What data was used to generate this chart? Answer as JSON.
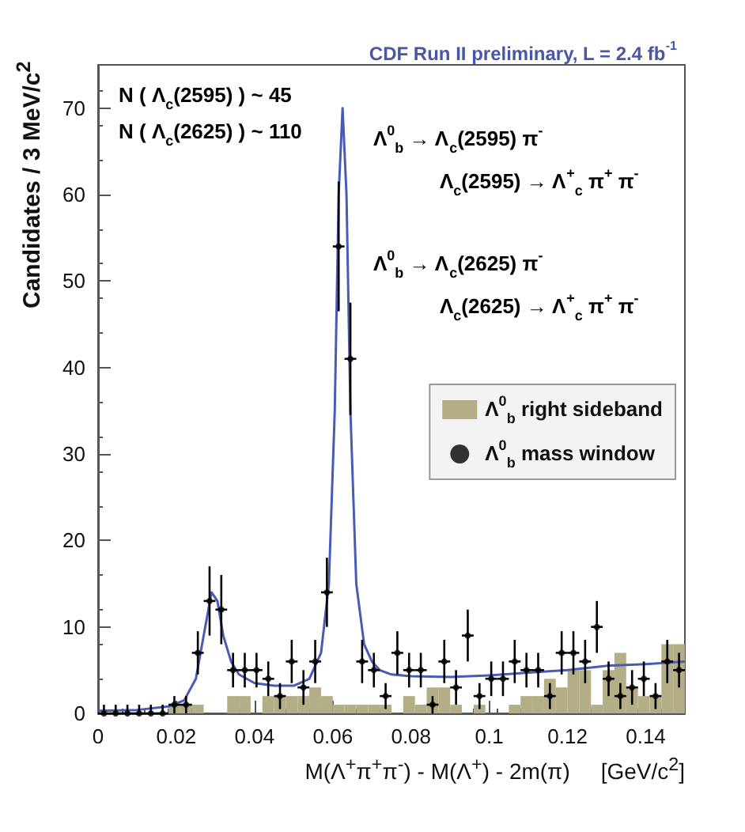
{
  "chart_data": {
    "type": "scatter",
    "title": "CDF Run II preliminary, L = 2.4 fb$^{-1}$",
    "xlabel": "M(Λ$^{+}$π$^{+}$π$^{-}$) - M(Λ$^{+}$) - 2m(π)     [GeV/c$^{2}$]",
    "ylabel": "Candidates / 3 MeV/c$^{2}$",
    "annotations": [
      "N ( Λ$_{c}$(2595) ) ~ 45",
      "N ( Λ$_{c}$(2625) ) ~ 110",
      "Λ$^{0}$$_{b}$ → Λ$_{c}$(2595) π$^{-}$",
      "Λ$_{c}$(2595) → Λ$^{+}$$_{c}$ π$^{+}$ π$^{-}$",
      "Λ$^{0}$$_{b}$ → Λ$_{c}$(2625) π$^{-}$",
      "Λ$_{c}$(2625) → Λ$^{+}$$_{c}$ π$^{+}$ π$^{-}$"
    ],
    "xlim": [
      0,
      0.15
    ],
    "xticks": [
      0,
      0.02,
      0.04,
      0.06,
      0.08,
      0.1,
      0.12,
      0.14
    ],
    "ylim": [
      0,
      75
    ],
    "yticks": [
      0,
      10,
      20,
      30,
      40,
      50,
      60,
      70
    ],
    "legend": "right",
    "series": [
      {
        "type": "bar",
        "name": "Λ$^{0}$$_{b}$ right sideband",
        "color": "#b3ae85",
        "x": [
          0.0015,
          0.0045,
          0.0075,
          0.0105,
          0.0135,
          0.0165,
          0.0195,
          0.0225,
          0.0255,
          0.0285,
          0.0315,
          0.0345,
          0.0375,
          0.0405,
          0.0435,
          0.0465,
          0.0495,
          0.0525,
          0.0555,
          0.0585,
          0.0615,
          0.0645,
          0.0675,
          0.0705,
          0.0735,
          0.0765,
          0.0795,
          0.0825,
          0.0855,
          0.0885,
          0.0915,
          0.0945,
          0.0975,
          0.1005,
          0.1035,
          0.1065,
          0.1095,
          0.1125,
          0.1155,
          0.1185,
          0.1215,
          0.1245,
          0.1275,
          0.1305,
          0.1335,
          0.1365,
          0.1395,
          0.1425,
          0.1455,
          0.1485
        ],
        "values": [
          0,
          0,
          0,
          0,
          0,
          0,
          1,
          1,
          1,
          0,
          0,
          2,
          2,
          0,
          2,
          2,
          2,
          2,
          3,
          2,
          1,
          1,
          1,
          1,
          1,
          0,
          2,
          1,
          3,
          3,
          1,
          0,
          1,
          0,
          0,
          1,
          2,
          2,
          4,
          3,
          5,
          5,
          1,
          5,
          7,
          3,
          2,
          2,
          8,
          8
        ]
      },
      {
        "type": "line",
        "color": "#4a5bb5",
        "x": [
          0,
          0.01,
          0.018,
          0.022,
          0.025,
          0.027,
          0.029,
          0.0305,
          0.032,
          0.034,
          0.036,
          0.04,
          0.045,
          0.05,
          0.054,
          0.057,
          0.059,
          0.0605,
          0.0615,
          0.0625,
          0.0635,
          0.0645,
          0.066,
          0.068,
          0.07,
          0.072,
          0.075,
          0.08,
          0.09,
          0.1,
          0.11,
          0.12,
          0.13,
          0.14,
          0.15
        ],
        "values": [
          0.3,
          0.4,
          0.8,
          1.5,
          4,
          9,
          14,
          13,
          9,
          6,
          4.5,
          3.5,
          3.2,
          3.2,
          4,
          7,
          15,
          35,
          60,
          70,
          60,
          35,
          15,
          8,
          6,
          5,
          4.5,
          4.3,
          4.2,
          4.4,
          4.7,
          5,
          5.5,
          5.7,
          6
        ]
      },
      {
        "type": "scatter",
        "name": "Λ$^{0}$$_{b}$ mass window",
        "color": "#000000",
        "marker": "circle",
        "x": [
          0.0015,
          0.0045,
          0.0075,
          0.0105,
          0.0135,
          0.0165,
          0.0195,
          0.0225,
          0.0255,
          0.0285,
          0.0315,
          0.0345,
          0.0375,
          0.0405,
          0.0435,
          0.0465,
          0.0495,
          0.0525,
          0.0555,
          0.0585,
          0.0615,
          0.0645,
          0.0675,
          0.0705,
          0.0735,
          0.0765,
          0.0795,
          0.0825,
          0.0855,
          0.0885,
          0.0915,
          0.0945,
          0.0975,
          0.1005,
          0.1035,
          0.1065,
          0.1095,
          0.1125,
          0.1155,
          0.1185,
          0.1215,
          0.1245,
          0.1275,
          0.1305,
          0.1335,
          0.1365,
          0.1395,
          0.1425,
          0.1455,
          0.1485
        ],
        "values": [
          0,
          0,
          0,
          0,
          0,
          0,
          1,
          1,
          7,
          13,
          12,
          5,
          5,
          5,
          4,
          2,
          6,
          3,
          6,
          14,
          54,
          41,
          6,
          5,
          2,
          7,
          5,
          5,
          1,
          6,
          3,
          9,
          2,
          4,
          4,
          6,
          5,
          5,
          2,
          7,
          7,
          6,
          10,
          4,
          2,
          3,
          4,
          2,
          6,
          5
        ],
        "errors": [
          [
            0,
            1
          ],
          [
            0,
            1
          ],
          [
            0,
            1
          ],
          [
            0,
            1
          ],
          [
            0,
            1
          ],
          [
            0,
            1
          ],
          1,
          1,
          2.5,
          4,
          4,
          2,
          2,
          2,
          2,
          1.5,
          2.5,
          2,
          2.5,
          4,
          7.5,
          6.5,
          2.5,
          2,
          1.5,
          2.5,
          2,
          2,
          1,
          2.5,
          2,
          3,
          1.5,
          2,
          2,
          2.5,
          2,
          2,
          1.5,
          2.5,
          2.5,
          2.5,
          3,
          2,
          1.5,
          2,
          2,
          1.5,
          2.5,
          2
        ],
        "xerrors": [
          0.0015,
          0.0015,
          0.0015,
          0.0015,
          0.0015,
          0.0015,
          0.0015,
          0.0015,
          0.0015,
          0.0015,
          0.0015,
          0.0015,
          0.0015,
          0.0015,
          0.0015,
          0.0015,
          0.0015,
          0.0015,
          0.0015,
          0.0015,
          0.0015,
          0.0015,
          0.0015,
          0.0015,
          0.0015,
          0.0015,
          0.0015,
          0.0015,
          0.0015,
          0.0015,
          0.0015,
          0.0015,
          0.0015,
          0.0015,
          0.0015,
          0.0015,
          0.0015,
          0.0015,
          0.0015,
          0.0015,
          0.0015,
          0.0015,
          0.0015,
          0.0015,
          0.0015,
          0.0015,
          0.0015,
          0.0015,
          0.0015,
          0.0015
        ]
      }
    ]
  }
}
